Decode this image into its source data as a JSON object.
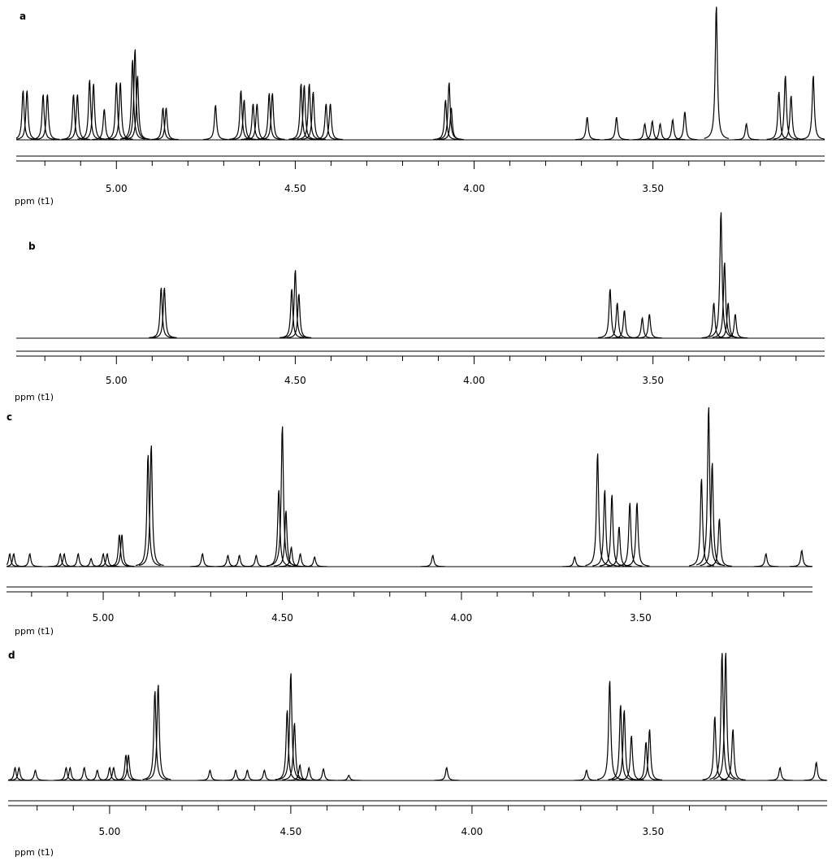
{
  "chart_data": [
    {
      "type": "line",
      "title": "a",
      "xlabel": "ppm (t1)",
      "color": "#000000",
      "xlim": [
        5.28,
        3.02
      ],
      "ylim": [
        0,
        100
      ],
      "xticks": [
        {
          "value": 5,
          "label": "5.00"
        },
        {
          "value": 4.5,
          "label": "4.50"
        },
        {
          "value": 4,
          "label": "4.00"
        },
        {
          "value": 3.5,
          "label": "3.50"
        }
      ],
      "xminor": [
        5.2,
        5.1,
        4.9,
        4.8,
        4.7,
        4.6,
        4.4,
        4.3,
        4.2,
        4.1,
        3.9,
        3.8,
        3.7,
        3.6,
        3.4,
        3.3,
        3.2,
        3.1
      ],
      "x": [
        5.261,
        5.25,
        5.205,
        5.193,
        5.12,
        5.109,
        5.075,
        5.064,
        5.034,
        5.0,
        4.989,
        4.955,
        4.948,
        4.941,
        4.87,
        4.861,
        4.723,
        4.652,
        4.643,
        4.618,
        4.607,
        4.573,
        4.564,
        4.484,
        4.475,
        4.461,
        4.45,
        4.414,
        4.402,
        4.08,
        4.07,
        4.064,
        3.684,
        3.602,
        3.523,
        3.502,
        3.48,
        3.445,
        3.411,
        3.323,
        3.239,
        3.148,
        3.13,
        3.114,
        3.052
      ],
      "values": [
        37,
        37,
        34,
        34,
        34,
        34,
        45,
        42,
        23,
        43,
        43,
        60,
        68,
        48,
        24,
        24,
        26,
        37,
        30,
        27,
        27,
        35,
        35,
        42,
        41,
        42,
        36,
        27,
        27,
        30,
        43,
        24,
        17,
        17,
        12,
        14,
        12,
        15,
        21,
        100,
        12,
        36,
        48,
        33,
        48
      ]
    },
    {
      "type": "line",
      "title": "b",
      "xlabel": "ppm (t1)",
      "color": "#000000",
      "xlim": [
        5.28,
        3.02
      ],
      "ylim": [
        0,
        100
      ],
      "xticks": [
        {
          "value": 5,
          "label": "5.00"
        },
        {
          "value": 4.5,
          "label": "4.50"
        },
        {
          "value": 4,
          "label": "4.00"
        },
        {
          "value": 3.5,
          "label": "3.50"
        }
      ],
      "xminor": [
        5.2,
        5.1,
        4.9,
        4.8,
        4.7,
        4.6,
        4.4,
        4.3,
        4.2,
        4.1,
        3.9,
        3.8,
        3.7,
        3.6,
        3.4,
        3.3,
        3.2,
        3.1
      ],
      "x": [
        4.875,
        4.866,
        4.51,
        4.5,
        4.49,
        3.62,
        3.6,
        3.58,
        3.53,
        3.51,
        3.33,
        3.31,
        3.3,
        3.29,
        3.27
      ],
      "values": [
        40,
        40,
        39,
        54,
        35,
        39,
        28,
        22,
        16,
        19,
        28,
        100,
        60,
        28,
        19
      ]
    },
    {
      "type": "line",
      "title": "c",
      "xlabel": "ppm (t1)",
      "color": "#000000",
      "xlim": [
        5.27,
        3.02
      ],
      "ylim": [
        0,
        100
      ],
      "xticks": [
        {
          "value": 5,
          "label": "5.00"
        },
        {
          "value": 4.5,
          "label": "4.50"
        },
        {
          "value": 4,
          "label": "4.00"
        },
        {
          "value": 3.5,
          "label": "3.50"
        }
      ],
      "xminor": [
        5.2,
        5.1,
        4.9,
        4.8,
        4.7,
        4.6,
        4.4,
        4.3,
        4.2,
        4.1,
        3.9,
        3.8,
        3.7,
        3.6,
        3.4,
        3.3,
        3.2,
        3.1
      ],
      "x": [
        5.261,
        5.25,
        5.205,
        5.12,
        5.109,
        5.07,
        5.034,
        5.0,
        4.989,
        4.955,
        4.948,
        4.875,
        4.866,
        4.723,
        4.652,
        4.62,
        4.573,
        4.51,
        4.5,
        4.49,
        4.475,
        4.45,
        4.41,
        4.08,
        3.684,
        3.62,
        3.6,
        3.58,
        3.56,
        3.53,
        3.51,
        3.33,
        3.31,
        3.3,
        3.28,
        3.15,
        3.05
      ],
      "values": [
        8,
        8,
        8,
        8,
        8,
        8,
        5,
        8,
        8,
        20,
        20,
        70,
        76,
        8,
        7,
        7,
        7,
        48,
        88,
        35,
        12,
        8,
        6,
        7,
        6,
        71,
        48,
        45,
        25,
        40,
        40,
        55,
        100,
        65,
        30,
        8,
        10
      ]
    },
    {
      "type": "line",
      "title": "d",
      "xlabel": "ppm (t1)",
      "color": "#000000",
      "xlim": [
        5.28,
        3.02
      ],
      "ylim": [
        0,
        100
      ],
      "xticks": [
        {
          "value": 5,
          "label": "5.00"
        },
        {
          "value": 4.5,
          "label": "4.50"
        },
        {
          "value": 4,
          "label": "4.00"
        },
        {
          "value": 3.5,
          "label": "3.50"
        }
      ],
      "xminor": [
        5.2,
        5.1,
        4.9,
        4.8,
        4.7,
        4.6,
        4.4,
        4.3,
        4.2,
        4.1,
        3.9,
        3.8,
        3.7,
        3.6,
        3.4,
        3.3,
        3.2,
        3.1
      ],
      "x": [
        5.261,
        5.25,
        5.205,
        5.12,
        5.109,
        5.07,
        5.034,
        5.0,
        4.989,
        4.955,
        4.948,
        4.875,
        4.866,
        4.723,
        4.652,
        4.62,
        4.573,
        4.51,
        4.5,
        4.49,
        4.475,
        4.45,
        4.41,
        4.34,
        4.07,
        3.684,
        3.62,
        3.59,
        3.58,
        3.56,
        3.52,
        3.51,
        3.33,
        3.31,
        3.3,
        3.28,
        3.15,
        3.05
      ],
      "values": [
        10,
        10,
        8,
        10,
        10,
        10,
        8,
        10,
        10,
        20,
        20,
        70,
        75,
        8,
        8,
        8,
        8,
        55,
        84,
        45,
        12,
        10,
        9,
        4,
        10,
        8,
        78,
        59,
        55,
        35,
        30,
        40,
        50,
        100,
        100,
        40,
        10,
        14
      ]
    }
  ]
}
